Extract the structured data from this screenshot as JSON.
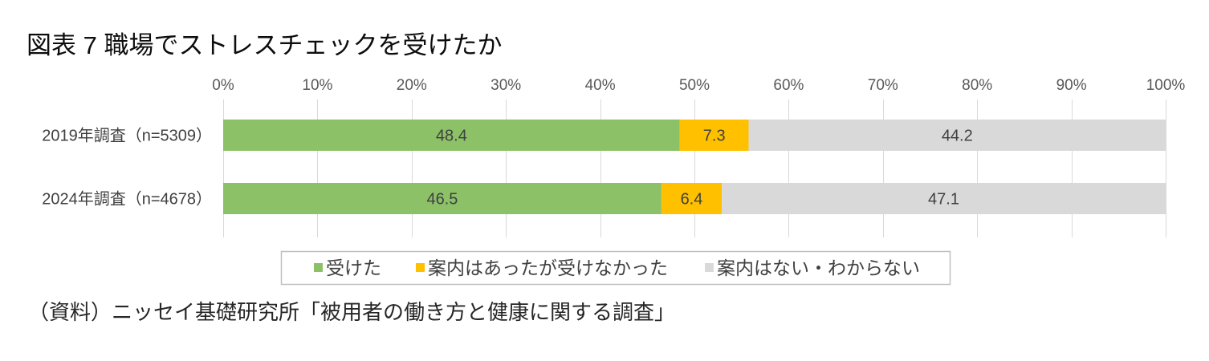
{
  "chart_data": {
    "type": "bar",
    "orientation": "horizontal",
    "stacking": "percent",
    "title": "図表 7 職場でストレスチェックを受けたか",
    "categories": [
      "2019年調査（n=5309）",
      "2024年調査（n=4678）"
    ],
    "series": [
      {
        "name": "受けた",
        "color": "#8CC168",
        "values": [
          48.4,
          46.5
        ]
      },
      {
        "name": "案内はあったが受けなかった",
        "color": "#FFC000",
        "values": [
          7.3,
          6.4
        ]
      },
      {
        "name": "案内はない・わからない",
        "color": "#D9D9D9",
        "values": [
          44.2,
          47.1
        ]
      }
    ],
    "xlim": [
      0,
      100
    ],
    "x_ticks": [
      0,
      10,
      20,
      30,
      40,
      50,
      60,
      70,
      80,
      90,
      100
    ],
    "x_tick_labels": [
      "0%",
      "10%",
      "20%",
      "30%",
      "40%",
      "50%",
      "60%",
      "70%",
      "80%",
      "90%",
      "100%"
    ],
    "x_axis_position": "top",
    "grid": "vertical",
    "legend_position": "bottom",
    "data_labels": true
  },
  "source_note": "（資料）ニッセイ基礎研究所「被用者の働き方と健康に関する調査」",
  "colors": {
    "grid": "#D9D9D9",
    "legend_border": "#BFBFBF"
  }
}
